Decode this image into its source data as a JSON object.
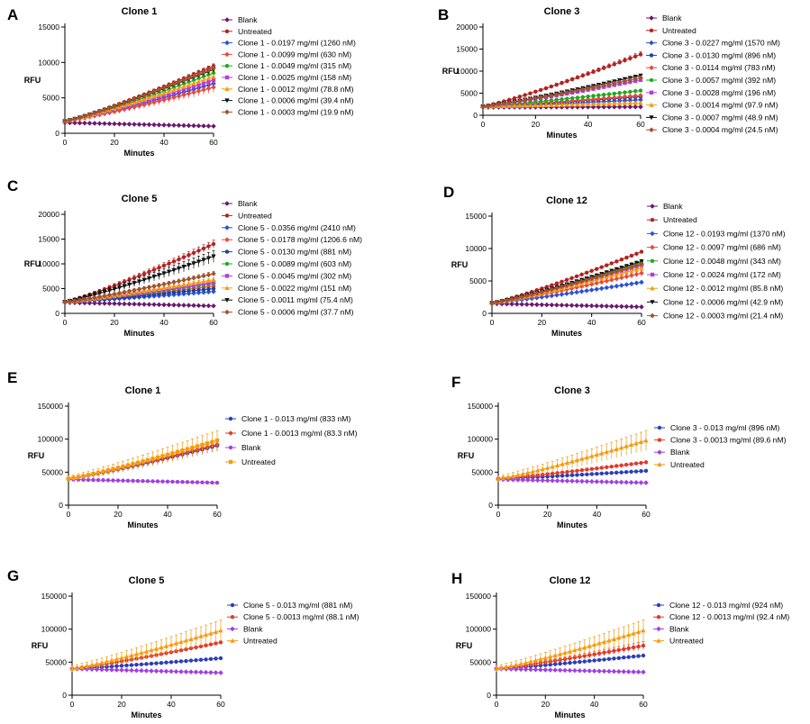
{
  "chart_data": [
    {
      "panel": "A",
      "title": "Clone 1",
      "type": "line",
      "xlabel": "Minutes",
      "ylabel": "RFU",
      "xlim": [
        0,
        60
      ],
      "ylim": [
        0,
        15000
      ],
      "xticks": [
        0,
        20,
        40,
        60
      ],
      "yticks": [
        0,
        5000,
        10000,
        15000
      ],
      "ytick_labels": [
        "0",
        "5000",
        "10000",
        "15000"
      ],
      "n_points": 31,
      "legend_position": "right",
      "series": [
        {
          "name": "Blank",
          "color": "#6a1a6e",
          "marker": "diamond",
          "start": 1500,
          "end": 1000,
          "err": 0
        },
        {
          "name": "Untreated",
          "color": "#b22222",
          "marker": "circle",
          "start": 1700,
          "end": 9500,
          "err": 300
        },
        {
          "name": "Clone 1 - 0.0197 mg/ml (1260 nM)",
          "color": "#2a52d8",
          "marker": "diamond",
          "start": 1700,
          "end": 7000,
          "err": 300
        },
        {
          "name": "Clone 1 - 0.0099 mg/ml (630 nM)",
          "color": "#e84a3a",
          "marker": "diamond",
          "start": 1700,
          "end": 6500,
          "err": 700
        },
        {
          "name": "Clone 1 - 0.0049 mg/ml (315 nM)",
          "color": "#1faa1f",
          "marker": "circle",
          "start": 1700,
          "end": 8500,
          "err": 300
        },
        {
          "name": "Clone 1 - 0.0025 mg/ml (158 nM)",
          "color": "#b040d8",
          "marker": "square",
          "start": 1700,
          "end": 7500,
          "err": 300
        },
        {
          "name": "Clone 1 - 0.0012 mg/ml (78.8 nM)",
          "color": "#f39c12",
          "marker": "triangle",
          "start": 1700,
          "end": 8000,
          "err": 300
        },
        {
          "name": "Clone 1 - 0.0006 mg/ml (39.4 nM)",
          "color": "#111111",
          "marker": "triangle-down",
          "start": 1700,
          "end": 9000,
          "err": 300
        },
        {
          "name": "Clone 1 - 0.0003 mg/ml (19.9 nM)",
          "color": "#a0522d",
          "marker": "diamond",
          "start": 1700,
          "end": 9200,
          "err": 300
        }
      ]
    },
    {
      "panel": "B",
      "title": "Clone 3",
      "type": "line",
      "xlabel": "Minutes",
      "ylabel": "RFU",
      "xlim": [
        0,
        60
      ],
      "ylim": [
        0,
        20000
      ],
      "xticks": [
        0,
        20,
        40,
        60
      ],
      "yticks": [
        0,
        5000,
        10000,
        15000,
        20000
      ],
      "ytick_labels": [
        "0",
        "5000",
        "10000",
        "15000",
        "20000"
      ],
      "n_points": 31,
      "legend_position": "right",
      "series": [
        {
          "name": "Blank",
          "color": "#6a1a6e",
          "marker": "diamond",
          "start": 1800,
          "end": 1900,
          "err": 0
        },
        {
          "name": "Untreated",
          "color": "#b22222",
          "marker": "circle",
          "start": 2000,
          "end": 13800,
          "err": 600
        },
        {
          "name": "Clone 3 - 0.0227 mg/ml (1570 nM)",
          "color": "#2a52d8",
          "marker": "diamond",
          "start": 2000,
          "end": 3500,
          "err": 200
        },
        {
          "name": "Clone 3 - 0.0130 mg/ml (896 nM)",
          "color": "#1f3fa0",
          "marker": "circle",
          "start": 2000,
          "end": 4200,
          "err": 200
        },
        {
          "name": "Clone 3 - 0.0114 mg/ml (783 nM)",
          "color": "#e84a3a",
          "marker": "diamond",
          "start": 2000,
          "end": 4500,
          "err": 200
        },
        {
          "name": "Clone 3 - 0.0057 mg/ml (392 nM)",
          "color": "#1faa1f",
          "marker": "circle",
          "start": 2000,
          "end": 5600,
          "err": 200
        },
        {
          "name": "Clone 3 - 0.0028 mg/ml (196 nM)",
          "color": "#b040d8",
          "marker": "square",
          "start": 2000,
          "end": 8000,
          "err": 300
        },
        {
          "name": "Clone 3 - 0.0014 mg/ml (97.9 nM)",
          "color": "#f39c12",
          "marker": "triangle",
          "start": 2000,
          "end": 2800,
          "err": 200
        },
        {
          "name": "Clone 3 - 0.0007 mg/ml (48.9 nM)",
          "color": "#111111",
          "marker": "triangle-down",
          "start": 2000,
          "end": 9000,
          "err": 300
        },
        {
          "name": "Clone 3 - 0.0004 mg/ml (24.5 nM)",
          "color": "#a0522d",
          "marker": "diamond",
          "start": 2000,
          "end": 8500,
          "err": 300
        }
      ]
    },
    {
      "panel": "C",
      "title": "Clone 5",
      "type": "line",
      "xlabel": "Minutes",
      "ylabel": "RFU",
      "xlim": [
        0,
        60
      ],
      "ylim": [
        0,
        20000
      ],
      "xticks": [
        0,
        20,
        40,
        60
      ],
      "yticks": [
        0,
        5000,
        10000,
        15000,
        20000
      ],
      "ytick_labels": [
        "0",
        "5000",
        "10000",
        "15000",
        "20000"
      ],
      "n_points": 31,
      "legend_position": "right",
      "series": [
        {
          "name": "Blank",
          "color": "#6a1a6e",
          "marker": "diamond",
          "start": 2200,
          "end": 1500,
          "err": 0
        },
        {
          "name": "Untreated",
          "color": "#b22222",
          "marker": "circle",
          "start": 2300,
          "end": 14000,
          "err": 800
        },
        {
          "name": "Clone 5 - 0.0356 mg/ml (2410 nM)",
          "color": "#2a52d8",
          "marker": "diamond",
          "start": 2300,
          "end": 4400,
          "err": 200
        },
        {
          "name": "Clone 5 - 0.0178 mg/ml (1206.6 nM)",
          "color": "#e84a3a",
          "marker": "diamond",
          "start": 2300,
          "end": 5500,
          "err": 300
        },
        {
          "name": "Clone 5 - 0.0130 mg/ml (881 nM)",
          "color": "#1f3fa0",
          "marker": "circle",
          "start": 2300,
          "end": 5000,
          "err": 200
        },
        {
          "name": "Clone 5 - 0.0089 mg/ml (603 nM)",
          "color": "#1faa1f",
          "marker": "circle",
          "start": 2300,
          "end": 6000,
          "err": 300
        },
        {
          "name": "Clone 5 - 0.0045 mg/ml (302 nM)",
          "color": "#b040d8",
          "marker": "square",
          "start": 2300,
          "end": 6300,
          "err": 300
        },
        {
          "name": "Clone 5 - 0.0022 mg/ml (151 nM)",
          "color": "#f39c12",
          "marker": "triangle",
          "start": 2300,
          "end": 6800,
          "err": 400
        },
        {
          "name": "Clone 5 - 0.0011 mg/ml (75.4 nM)",
          "color": "#111111",
          "marker": "triangle-down",
          "start": 2300,
          "end": 11500,
          "err": 1200
        },
        {
          "name": "Clone 5 - 0.0006 mg/ml (37.7 nM)",
          "color": "#a0522d",
          "marker": "diamond",
          "start": 2300,
          "end": 8000,
          "err": 500
        }
      ]
    },
    {
      "panel": "D",
      "title": "Clone 12",
      "type": "line",
      "xlabel": "Minutes",
      "ylabel": "RFU",
      "xlim": [
        0,
        60
      ],
      "ylim": [
        0,
        15000
      ],
      "xticks": [
        0,
        20,
        40,
        60
      ],
      "yticks": [
        0,
        5000,
        10000,
        15000
      ],
      "ytick_labels": [
        "0",
        "5000",
        "10000",
        "15000"
      ],
      "n_points": 31,
      "legend_position": "right",
      "series": [
        {
          "name": "Blank",
          "color": "#6a1a6e",
          "marker": "diamond",
          "start": 1500,
          "end": 1000,
          "err": 0
        },
        {
          "name": "Untreated",
          "color": "#b22222",
          "marker": "circle",
          "start": 1600,
          "end": 9500,
          "err": 200
        },
        {
          "name": "Clone 12 - 0.0193 mg/ml (1370 nM)",
          "color": "#2a52d8",
          "marker": "diamond",
          "start": 1600,
          "end": 4800,
          "err": 200
        },
        {
          "name": "Clone 12 - 0.0097 mg/ml (686 nM)",
          "color": "#e84a3a",
          "marker": "diamond",
          "start": 1600,
          "end": 6200,
          "err": 400
        },
        {
          "name": "Clone 12 - 0.0048 mg/ml (343 nM)",
          "color": "#1faa1f",
          "marker": "circle",
          "start": 1600,
          "end": 7800,
          "err": 500
        },
        {
          "name": "Clone 12 - 0.0024 mg/ml (172 nM)",
          "color": "#b040d8",
          "marker": "square",
          "start": 1600,
          "end": 7400,
          "err": 300
        },
        {
          "name": "Clone 12 - 0.0012 mg/ml (85.8 nM)",
          "color": "#f39c12",
          "marker": "triangle",
          "start": 1600,
          "end": 7000,
          "err": 300
        },
        {
          "name": "Clone 12 - 0.0006 mg/ml (42.9 nM)",
          "color": "#111111",
          "marker": "triangle-down",
          "start": 1600,
          "end": 8000,
          "err": 300
        },
        {
          "name": "Clone 12 - 0.0003 mg/ml (21.4 nM)",
          "color": "#a0522d",
          "marker": "diamond",
          "start": 1600,
          "end": 7600,
          "err": 300
        }
      ]
    },
    {
      "panel": "E",
      "title": "Clone 1",
      "type": "line",
      "xlabel": "Minutes",
      "ylabel": "RFU",
      "xlim": [
        0,
        60
      ],
      "ylim": [
        0,
        150000
      ],
      "xticks": [
        0,
        20,
        40,
        60
      ],
      "yticks": [
        0,
        50000,
        100000,
        150000
      ],
      "ytick_labels": [
        "0",
        "50000",
        "100000",
        "150000"
      ],
      "n_points": 31,
      "legend_position": "right",
      "series": [
        {
          "name": "Clone 1 - 0.013 mg/ml (833 nM)",
          "color": "#2a3fb8",
          "marker": "circle",
          "start": 40000,
          "end": 90000,
          "err": 8000
        },
        {
          "name": "Clone 1 - 0.0013 mg/ml (83.3 nM)",
          "color": "#e03a2a",
          "marker": "diamond",
          "start": 40000,
          "end": 92000,
          "err": 8000
        },
        {
          "name": "Blank",
          "color": "#a040e0",
          "marker": "circle",
          "start": 39000,
          "end": 34000,
          "err": 0
        },
        {
          "name": "Untreated",
          "color": "#f39c12",
          "marker": "square",
          "start": 40000,
          "end": 98000,
          "err": 15000
        }
      ]
    },
    {
      "panel": "F",
      "title": "Clone 3",
      "type": "line",
      "xlabel": "Minutes",
      "ylabel": "RFU",
      "xlim": [
        0,
        60
      ],
      "ylim": [
        0,
        150000
      ],
      "xticks": [
        0,
        20,
        40,
        60
      ],
      "yticks": [
        0,
        50000,
        100000,
        150000
      ],
      "ytick_labels": [
        "0",
        "50000",
        "100000",
        "150000"
      ],
      "n_points": 31,
      "legend_position": "right",
      "series": [
        {
          "name": "Clone 3 - 0.013 mg/ml (896 nM)",
          "color": "#2a3fb8",
          "marker": "circle",
          "start": 40000,
          "end": 52000,
          "err": 1000
        },
        {
          "name": "Clone 3 - 0.0013 mg/ml (89.6 nM)",
          "color": "#e03a2a",
          "marker": "circle",
          "start": 40000,
          "end": 65000,
          "err": 1500
        },
        {
          "name": "Blank",
          "color": "#a040e0",
          "marker": "diamond",
          "start": 39000,
          "end": 34000,
          "err": 0
        },
        {
          "name": "Untreated",
          "color": "#f39c12",
          "marker": "triangle",
          "start": 40000,
          "end": 98000,
          "err": 15000
        }
      ]
    },
    {
      "panel": "G",
      "title": "Clone 5",
      "type": "line",
      "xlabel": "Minutes",
      "ylabel": "RFU",
      "xlim": [
        0,
        60
      ],
      "ylim": [
        0,
        150000
      ],
      "xticks": [
        0,
        20,
        40,
        60
      ],
      "yticks": [
        0,
        50000,
        100000,
        150000
      ],
      "ytick_labels": [
        "0",
        "50000",
        "100000",
        "150000"
      ],
      "n_points": 31,
      "legend_position": "right",
      "series": [
        {
          "name": "Clone 5 - 0.013 mg/ml (881 nM)",
          "color": "#2a3fb8",
          "marker": "circle",
          "start": 40000,
          "end": 56000,
          "err": 1000
        },
        {
          "name": "Clone 5 - 0.0013 mg/ml (88.1 nM)",
          "color": "#e03a2a",
          "marker": "circle",
          "start": 40000,
          "end": 80000,
          "err": 2000
        },
        {
          "name": "Blank",
          "color": "#a040e0",
          "marker": "diamond",
          "start": 40000,
          "end": 34000,
          "err": 0
        },
        {
          "name": "Untreated",
          "color": "#f39c12",
          "marker": "triangle",
          "start": 40000,
          "end": 98000,
          "err": 16000
        }
      ]
    },
    {
      "panel": "H",
      "title": "Clone 12",
      "type": "line",
      "xlabel": "Minutes",
      "ylabel": "RFU",
      "xlim": [
        0,
        60
      ],
      "ylim": [
        0,
        150000
      ],
      "xticks": [
        0,
        20,
        40,
        60
      ],
      "yticks": [
        0,
        50000,
        100000,
        150000
      ],
      "ytick_labels": [
        "0",
        "50000",
        "100000",
        "150000"
      ],
      "n_points": 31,
      "legend_position": "right",
      "series": [
        {
          "name": "Clone 12 - 0.013 mg/ml (924 nM)",
          "color": "#2a3fb8",
          "marker": "circle",
          "start": 40000,
          "end": 60000,
          "err": 1000
        },
        {
          "name": "Clone 12 - 0.0013 mg/ml (92.4 nM)",
          "color": "#e03a2a",
          "marker": "circle",
          "start": 40000,
          "end": 75000,
          "err": 6000
        },
        {
          "name": "Blank",
          "color": "#a040e0",
          "marker": "diamond",
          "start": 40000,
          "end": 35000,
          "err": 0
        },
        {
          "name": "Untreated",
          "color": "#f39c12",
          "marker": "triangle",
          "start": 40000,
          "end": 98000,
          "err": 16000
        }
      ]
    }
  ]
}
